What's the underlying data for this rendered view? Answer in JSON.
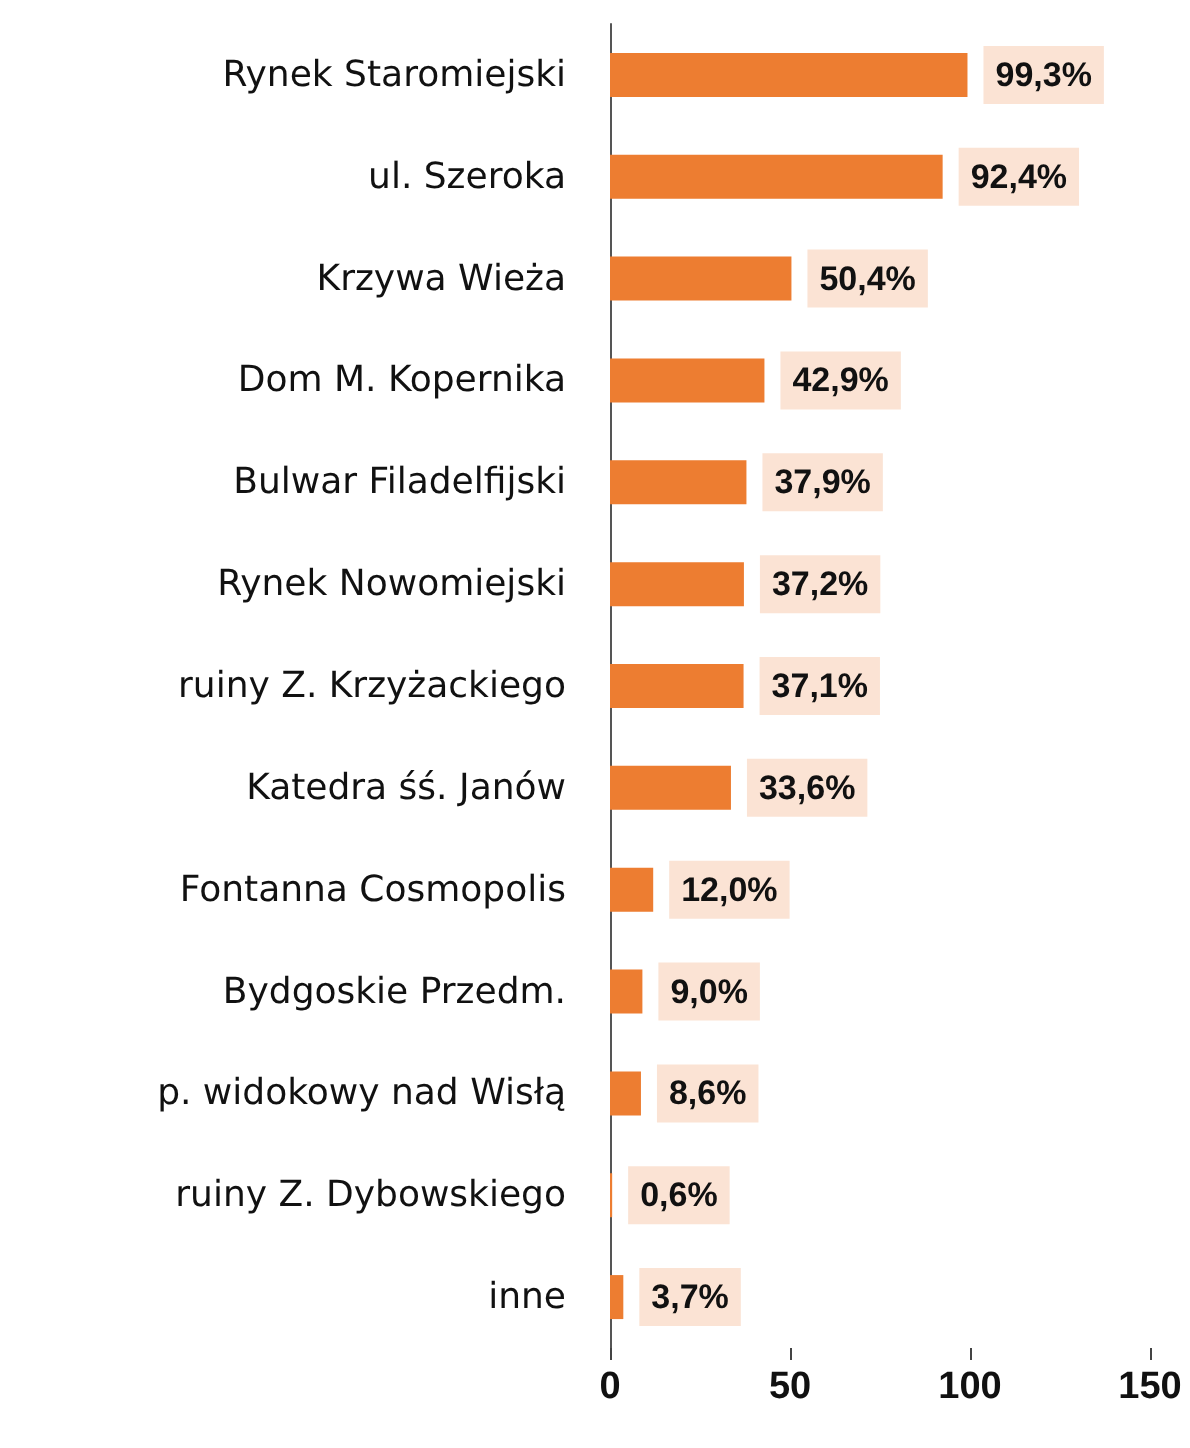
{
  "chart_data": {
    "type": "bar",
    "orientation": "horizontal",
    "categories": [
      "Rynek Staromiejski",
      "ul. Szeroka",
      "Krzywa Wieża",
      "Dom M. Kopernika",
      "Bulwar Filadelfijski",
      "Rynek Nowomiejski",
      "ruiny Z. Krzyżackiego",
      "Katedra śś. Janów",
      "Fontanna Cosmopolis",
      "Bydgoskie Przedm.",
      "p. widokowy nad Wisłą",
      "ruiny Z. Dybowskiego",
      "inne"
    ],
    "values": [
      99.3,
      92.4,
      50.4,
      42.9,
      37.9,
      37.2,
      37.1,
      33.6,
      12.0,
      9.0,
      8.6,
      0.6,
      3.7
    ],
    "value_labels": [
      "99,3%",
      "92,4%",
      "50,4%",
      "42,9%",
      "37,9%",
      "37,2%",
      "37,1%",
      "33,6%",
      "12,0%",
      "9,0%",
      "8,6%",
      "0,6%",
      "3,7%"
    ],
    "color": "#ed7d31",
    "xlim": [
      0,
      150
    ],
    "xticks": [
      0,
      50,
      100,
      150
    ],
    "grid": false
  }
}
